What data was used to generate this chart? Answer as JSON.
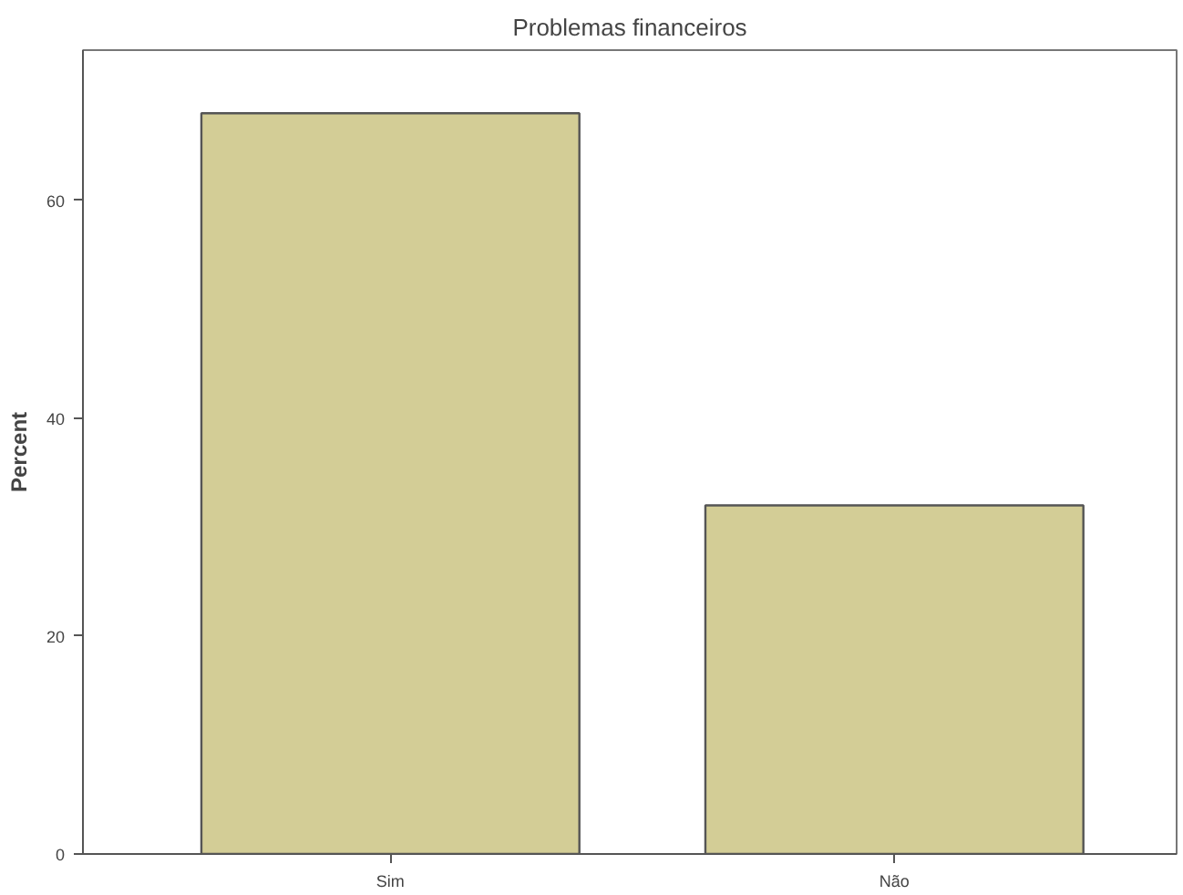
{
  "chart_data": {
    "type": "bar",
    "title": "Problemas financeiros",
    "ylabel": "Percent",
    "categories": [
      "Sim",
      "Não"
    ],
    "values": [
      68,
      32
    ],
    "color": "#d3cd96",
    "ylim": [
      0,
      73.8
    ],
    "yticks": [
      0,
      20,
      40,
      60
    ],
    "grid": false
  }
}
